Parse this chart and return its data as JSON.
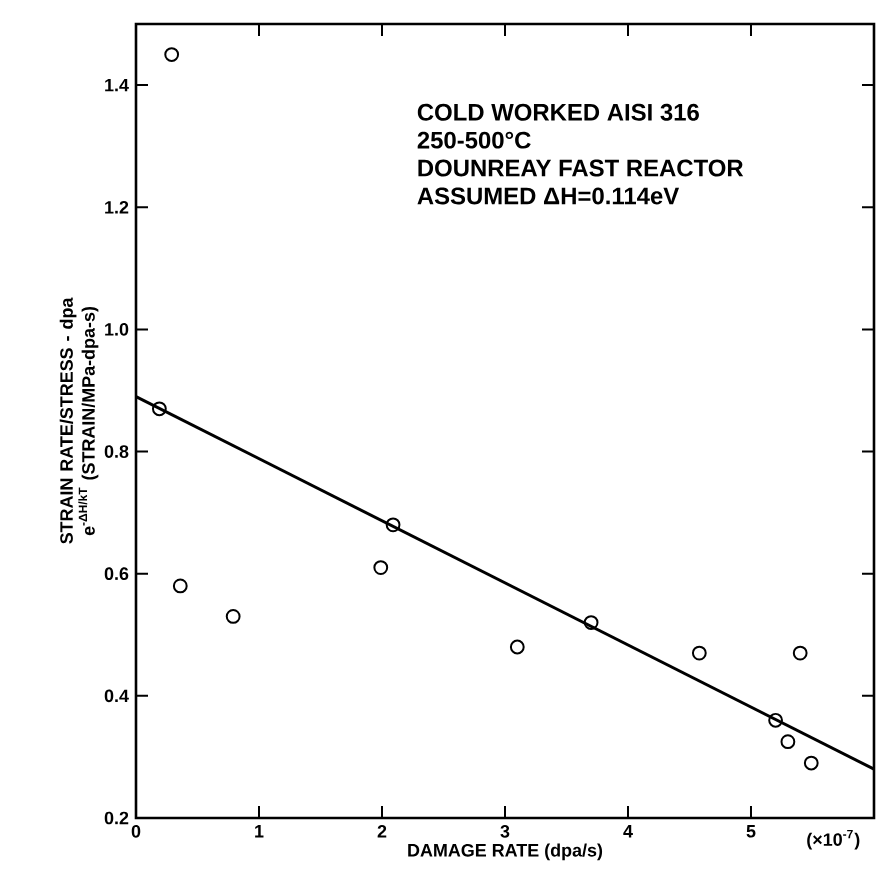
{
  "chart_data": {
    "type": "scatter",
    "xlabel": "DAMAGE RATE (dpa/s)",
    "ylabel": "STRAIN RATE/STRESS - dpa e$^{-ΔH/kT}$ (STRAIN/MPa-dpa-s)",
    "xlim": [
      0,
      6
    ],
    "ylim": [
      0.2,
      1.5
    ],
    "xticks": [
      0,
      1,
      2,
      3,
      4,
      5
    ],
    "yticks": [
      0.2,
      0.4,
      0.6,
      0.8,
      {
        "value": 1,
        "label": "1.0"
      },
      1.2,
      1.4
    ],
    "marker": "circle",
    "grid": false,
    "annotations": [
      "COLD WORKED AISI 316",
      "250-500°C",
      "DOUNREAY FAST REACTOR",
      "ASSUMED ΔH=0.114eV",
      "(×10$^{-7}$)"
    ],
    "series": [
      {
        "color": "#000000",
        "x": [
          0.29,
          0.19,
          0.36,
          0.79,
          1.99,
          2.09,
          3.1,
          3.7,
          4.58,
          5.4,
          5.2,
          5.3,
          5.49
        ],
        "values": [
          1.45,
          0.87,
          0.58,
          0.53,
          0.61,
          0.68,
          0.48,
          0.52,
          0.47,
          0.47,
          0.36,
          0.325,
          0.29
        ]
      },
      {
        "type": "line",
        "color": "#000000",
        "marker": "none",
        "line_style": "solid",
        "x": [
          0,
          6
        ],
        "values": [
          0.89,
          0.28
        ]
      }
    ]
  }
}
